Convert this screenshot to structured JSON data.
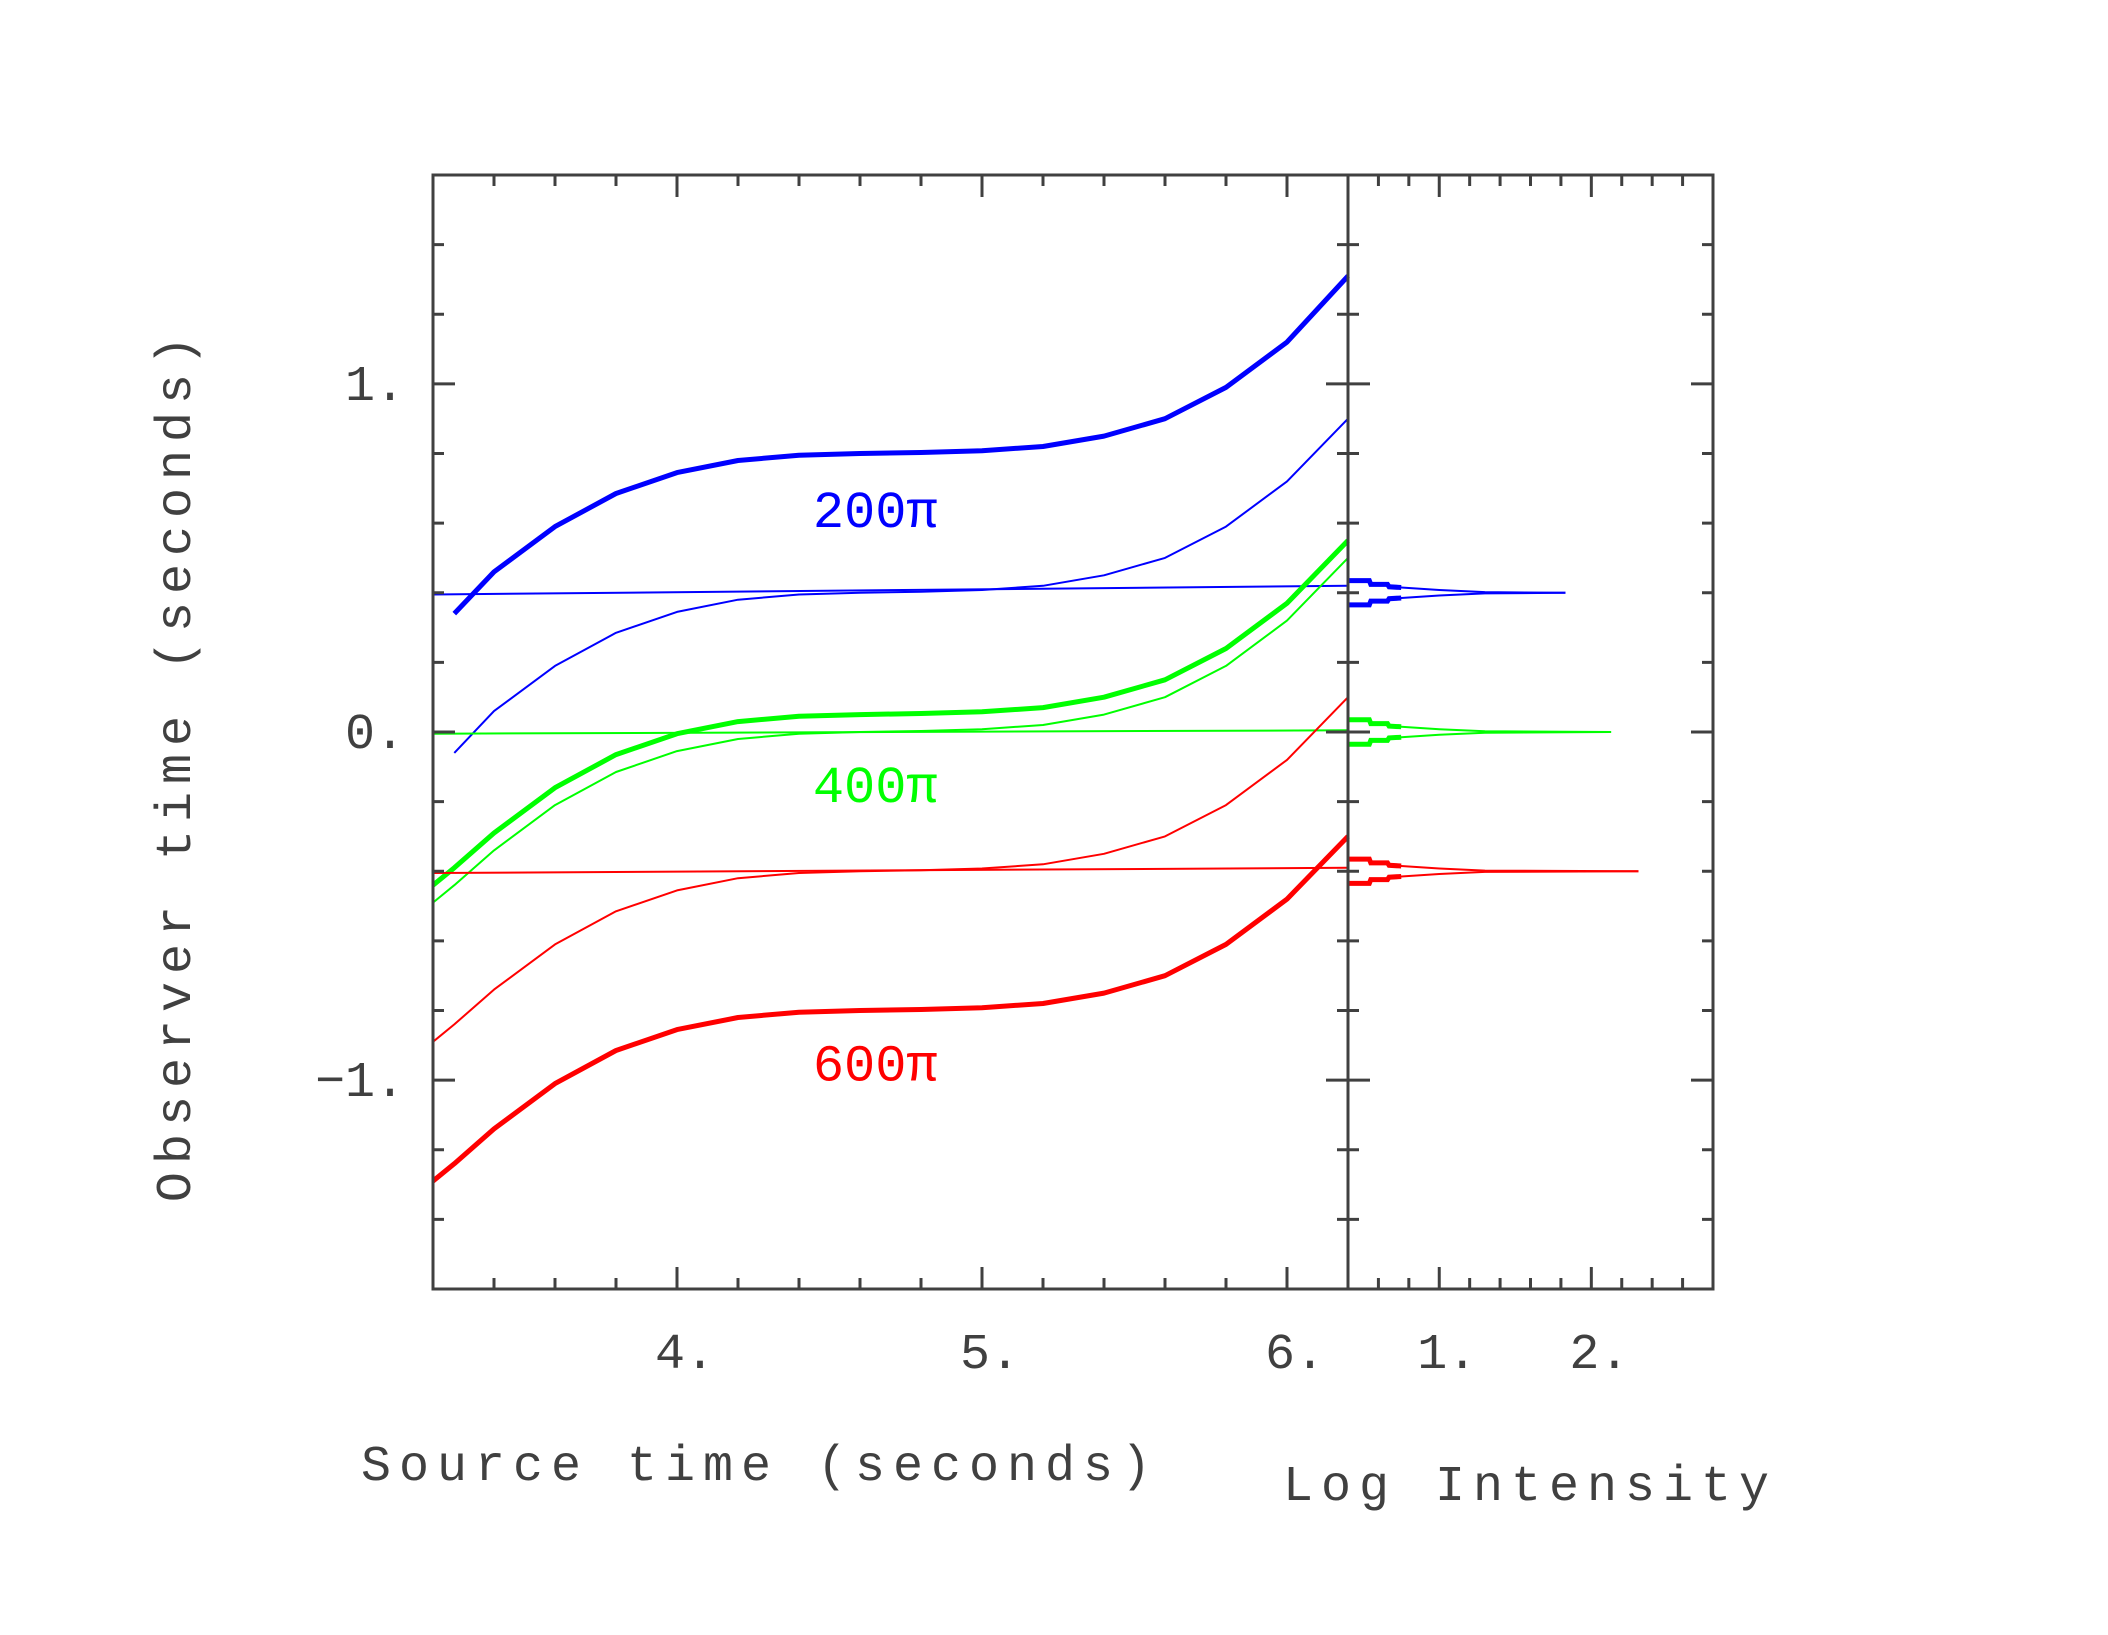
{
  "chart_data": [
    {
      "panel": "main",
      "type": "line",
      "xlabel": "Source time (seconds)",
      "ylabel": "Observer time (seconds)",
      "xlim": [
        3.2,
        6.2
      ],
      "ylim": [
        -1.6,
        1.6
      ],
      "x_ticks": [
        {
          "value": 4,
          "label": "4."
        },
        {
          "value": 5,
          "label": "5."
        },
        {
          "value": 6,
          "label": "6."
        }
      ],
      "y_ticks": [
        {
          "value": 1,
          "label": "1."
        },
        {
          "value": 0,
          "label": "0."
        },
        {
          "value": -1,
          "label": "−1."
        }
      ],
      "grid": false,
      "annotations": [
        {
          "text": "200π",
          "x": 4.65,
          "y": 0.64,
          "color": "#0000ff"
        },
        {
          "text": "400π",
          "x": 4.65,
          "y": -0.15,
          "color": "#00ff00"
        },
        {
          "text": "600π",
          "x": 4.65,
          "y": -0.95,
          "color": "#ff0000"
        }
      ],
      "series": [
        {
          "color": "#0000ff",
          "weight": "thick",
          "x": [
            3.27,
            3.4,
            3.6,
            3.8,
            4.0,
            4.2,
            4.4,
            4.6,
            4.8,
            5.0,
            5.2,
            5.4,
            5.6,
            5.8,
            6.0,
            6.2
          ],
          "y": [
            0.34,
            0.46,
            0.59,
            0.685,
            0.745,
            0.78,
            0.795,
            0.8,
            0.803,
            0.808,
            0.82,
            0.85,
            0.9,
            0.99,
            1.12,
            1.31
          ]
        },
        {
          "color": "#0000ff",
          "weight": "thin",
          "x": [
            3.27,
            3.4,
            3.6,
            3.8,
            4.0,
            4.2,
            4.4,
            4.6,
            4.8,
            5.0,
            5.2,
            5.4,
            5.6,
            5.8,
            6.0,
            6.2
          ],
          "y": [
            -0.06,
            0.06,
            0.19,
            0.285,
            0.345,
            0.38,
            0.395,
            0.4,
            0.403,
            0.408,
            0.42,
            0.45,
            0.5,
            0.59,
            0.72,
            0.9
          ]
        },
        {
          "color": "#0000ff",
          "weight": "thin",
          "x": [
            3.2,
            6.2
          ],
          "y": [
            0.395,
            0.42
          ]
        },
        {
          "color": "#00ff00",
          "weight": "thick",
          "x": [
            3.2,
            3.27,
            3.4,
            3.6,
            3.8,
            4.0,
            4.2,
            4.4,
            4.6,
            4.8,
            5.0,
            5.2,
            5.4,
            5.6,
            5.8,
            6.0,
            6.2
          ],
          "y": [
            -0.44,
            -0.39,
            -0.29,
            -0.16,
            -0.065,
            -0.005,
            0.03,
            0.045,
            0.05,
            0.053,
            0.058,
            0.07,
            0.1,
            0.15,
            0.24,
            0.37,
            0.55
          ]
        },
        {
          "color": "#00ff00",
          "weight": "thin",
          "x": [
            3.2,
            3.27,
            3.4,
            3.6,
            3.8,
            4.0,
            4.2,
            4.4,
            4.6,
            4.8,
            5.0,
            5.2,
            5.4,
            5.6,
            5.8,
            6.0,
            6.2
          ],
          "y": [
            -0.49,
            -0.44,
            -0.34,
            -0.21,
            -0.115,
            -0.055,
            -0.02,
            -0.005,
            0,
            0.003,
            0.008,
            0.02,
            0.05,
            0.1,
            0.19,
            0.32,
            0.5
          ]
        },
        {
          "color": "#00ff00",
          "weight": "thin",
          "x": [
            3.2,
            6.2
          ],
          "y": [
            -0.005,
            0.005
          ]
        },
        {
          "color": "#ff0000",
          "weight": "thin",
          "x": [
            3.2,
            3.27,
            3.4,
            3.6,
            3.8,
            4.0,
            4.2,
            4.4,
            4.6,
            4.8,
            5.0,
            5.2,
            5.4,
            5.6,
            5.8,
            6.0,
            6.2
          ],
          "y": [
            -0.89,
            -0.84,
            -0.74,
            -0.61,
            -0.515,
            -0.455,
            -0.42,
            -0.405,
            -0.4,
            -0.397,
            -0.392,
            -0.38,
            -0.35,
            -0.3,
            -0.21,
            -0.08,
            0.1
          ]
        },
        {
          "color": "#ff0000",
          "weight": "thin",
          "x": [
            3.2,
            6.2
          ],
          "y": [
            -0.405,
            -0.39
          ]
        },
        {
          "color": "#ff0000",
          "weight": "thick",
          "x": [
            3.2,
            3.27,
            3.4,
            3.6,
            3.8,
            4.0,
            4.2,
            4.4,
            4.6,
            4.8,
            5.0,
            5.2,
            5.4,
            5.6,
            5.8,
            6.0,
            6.2
          ],
          "y": [
            -1.29,
            -1.24,
            -1.14,
            -1.01,
            -0.915,
            -0.855,
            -0.82,
            -0.805,
            -0.8,
            -0.797,
            -0.792,
            -0.78,
            -0.75,
            -0.7,
            -0.61,
            -0.48,
            -0.3
          ]
        }
      ]
    },
    {
      "panel": "right",
      "type": "line",
      "xlabel": "Log Intensity",
      "xlim": [
        0.4,
        2.8
      ],
      "ylim": [
        -1.6,
        1.6
      ],
      "x_ticks": [
        {
          "value": 1,
          "label": "1."
        },
        {
          "value": 2,
          "label": "2."
        }
      ],
      "grid": false,
      "spike_profile": {
        "log_intensity": [
          0.4,
          0.54,
          0.55,
          0.66,
          0.67,
          0.75,
          1.0,
          1.3
        ],
        "half_width": [
          0.035,
          0.035,
          0.024,
          0.024,
          0.017,
          0.015,
          0.008,
          0.002
        ]
      },
      "series": [
        {
          "color": "#0000ff",
          "center": 0.4,
          "max_log_intensity": 1.83
        },
        {
          "color": "#00ff00",
          "center": 0.0,
          "max_log_intensity": 2.13
        },
        {
          "color": "#ff0000",
          "center": -0.4,
          "max_log_intensity": 2.31
        }
      ]
    }
  ]
}
